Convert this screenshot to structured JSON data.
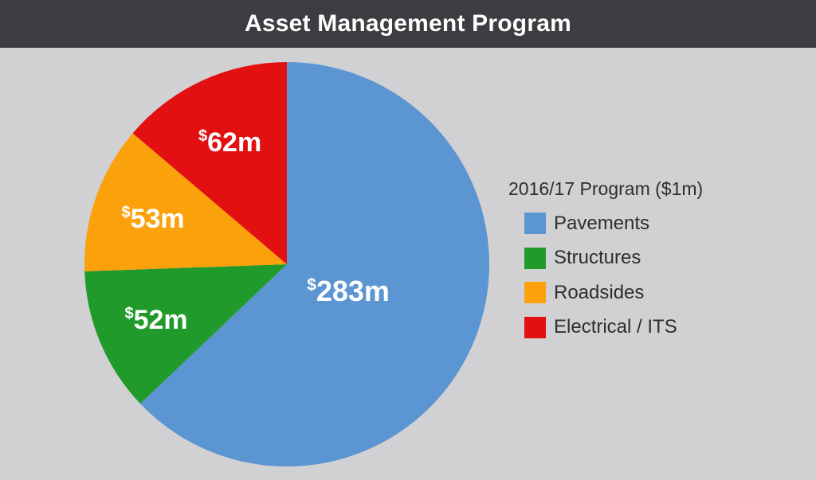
{
  "header": {
    "title": "Asset Management Program"
  },
  "chart_data": {
    "type": "pie",
    "title": "Asset Management Program",
    "legend_title": "2016/17 Program ($1m)",
    "legend_position": "right",
    "currency_symbol": "$",
    "slices": [
      {
        "name": "Pavements",
        "value": 283,
        "label": "283m",
        "color": "#5b95d2"
      },
      {
        "name": "Structures",
        "value": 52,
        "label": "52m",
        "color": "#219a2c"
      },
      {
        "name": "Roadsides",
        "value": 53,
        "label": "53m",
        "color": "#fba10b"
      },
      {
        "name": "Electrical / ITS",
        "value": 62,
        "label": "62m",
        "color": "#e31012"
      }
    ]
  }
}
